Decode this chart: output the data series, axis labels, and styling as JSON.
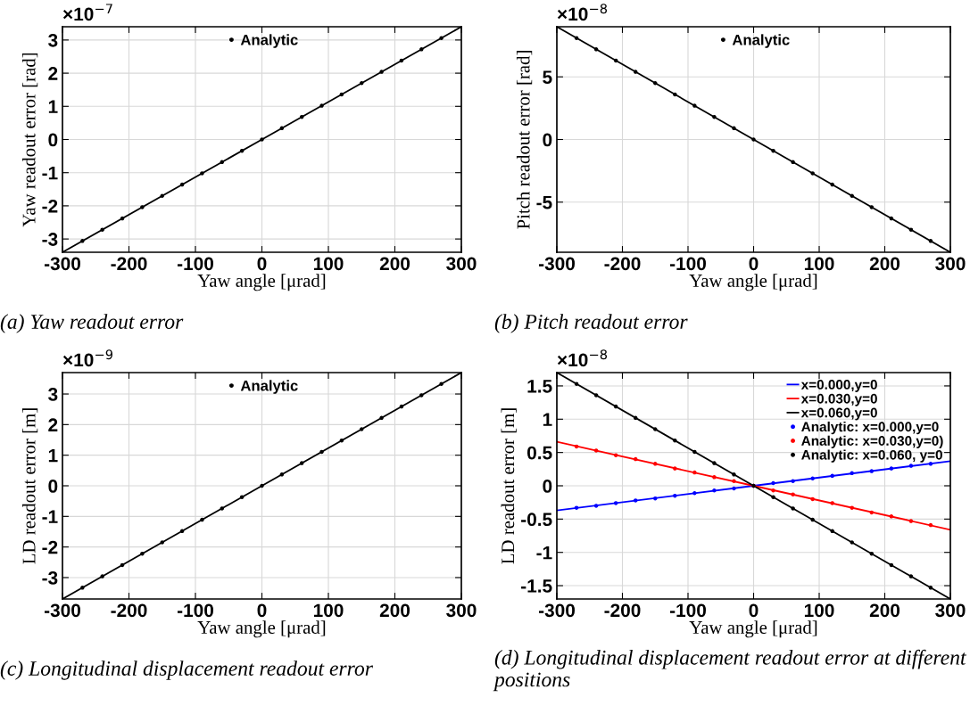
{
  "chart_data": [
    {
      "type": "line",
      "xlabel": "Yaw angle [μrad]",
      "ylabel": "Yaw readout error [rad]",
      "xlim": [
        -300,
        300
      ],
      "xticks": [
        -300,
        -200,
        -100,
        0,
        100,
        200,
        300
      ],
      "ylim": [
        -3.4,
        3.4
      ],
      "yticks": [
        -3,
        -2,
        -1,
        0,
        1,
        2,
        3
      ],
      "grid": true,
      "legend": "top",
      "annotations": [
        "×10$^{−7}$",
        "(a) Yaw readout error"
      ],
      "series": [
        {
          "type": "line",
          "color": "#000000",
          "x": [
            -300,
            0,
            300
          ],
          "values": [
            -3.4,
            0,
            3.4
          ]
        },
        {
          "type": "scatter",
          "name": "Analytic",
          "color": "#000000",
          "marker": "circle",
          "x": [
            -270,
            -240,
            -210,
            -180,
            -150,
            -120,
            -90,
            -60,
            -30,
            0,
            30,
            60,
            90,
            120,
            150,
            180,
            210,
            240,
            270
          ],
          "values": [
            -3.06,
            -2.72,
            -2.38,
            -2.04,
            -1.7,
            -1.36,
            -1.02,
            -0.68,
            -0.34,
            0,
            0.34,
            0.68,
            1.02,
            1.36,
            1.7,
            2.04,
            2.38,
            2.72,
            3.06
          ]
        }
      ]
    },
    {
      "type": "line",
      "xlabel": "Yaw angle [μrad]",
      "ylabel": "Pitch readout error [rad]",
      "xlim": [
        -300,
        300
      ],
      "xticks": [
        -300,
        -200,
        -100,
        0,
        100,
        200,
        300
      ],
      "ylim": [
        -9.0,
        9.0
      ],
      "yticks": [
        -5,
        0,
        5
      ],
      "grid": true,
      "legend": "top",
      "annotations": [
        "×10$^{−8}$",
        "(b) Pitch readout error"
      ],
      "series": [
        {
          "type": "line",
          "color": "#000000",
          "x": [
            -300,
            0,
            300
          ],
          "values": [
            9.0,
            0,
            -9.0
          ]
        },
        {
          "type": "scatter",
          "name": "Analytic",
          "color": "#000000",
          "marker": "circle",
          "x": [
            -270,
            -240,
            -210,
            -180,
            -150,
            -120,
            -90,
            -60,
            -30,
            0,
            30,
            60,
            90,
            120,
            150,
            180,
            210,
            240,
            270
          ],
          "values": [
            8.1,
            7.2,
            6.3,
            5.4,
            4.5,
            3.6,
            2.7,
            1.8,
            0.9,
            0,
            -0.9,
            -1.8,
            -2.7,
            -3.6,
            -4.5,
            -5.4,
            -6.3,
            -7.2,
            -8.1
          ]
        }
      ]
    },
    {
      "type": "line",
      "xlabel": "Yaw angle [μrad]",
      "ylabel": "LD readout error [m]",
      "xlim": [
        -300,
        300
      ],
      "xticks": [
        -300,
        -200,
        -100,
        0,
        100,
        200,
        300
      ],
      "ylim": [
        -3.7,
        3.7
      ],
      "yticks": [
        -3,
        -2,
        -1,
        0,
        1,
        2,
        3
      ],
      "grid": true,
      "legend": "top",
      "annotations": [
        "×10$^{−9}$",
        "(c) Longitudinal displacement readout error"
      ],
      "series": [
        {
          "type": "line",
          "color": "#000000",
          "x": [
            -300,
            0,
            300
          ],
          "values": [
            -3.7,
            0,
            3.7
          ]
        },
        {
          "type": "scatter",
          "name": "Analytic",
          "color": "#000000",
          "marker": "circle",
          "x": [
            -270,
            -240,
            -210,
            -180,
            -150,
            -120,
            -90,
            -60,
            -30,
            0,
            30,
            60,
            90,
            120,
            150,
            180,
            210,
            240,
            270
          ],
          "values": [
            -3.33,
            -2.96,
            -2.59,
            -2.22,
            -1.85,
            -1.48,
            -1.11,
            -0.74,
            -0.37,
            0,
            0.37,
            0.74,
            1.11,
            1.48,
            1.85,
            2.22,
            2.59,
            2.96,
            3.33
          ]
        }
      ]
    },
    {
      "type": "line",
      "xlabel": "Yaw angle [μrad]",
      "ylabel": "LD readout error [m]",
      "xlim": [
        -300,
        300
      ],
      "xticks": [
        -300,
        -200,
        -100,
        0,
        100,
        200,
        300
      ],
      "ylim": [
        -1.7,
        1.7
      ],
      "yticks": [
        -1.5,
        -1,
        -0.5,
        0,
        0.5,
        1,
        1.5
      ],
      "grid": true,
      "legend": "top right",
      "annotations": [
        "×10$^{−8}$",
        "(d) Longitudinal displacement readout error at different positions"
      ],
      "series": [
        {
          "type": "line",
          "name": "x=0.000,y=0",
          "color": "#0000ff",
          "x": [
            -300,
            0,
            300
          ],
          "values": [
            -0.37,
            0,
            0.37
          ]
        },
        {
          "type": "line",
          "name": "x=0.030,y=0",
          "color": "#ff0000",
          "x": [
            -300,
            0,
            300
          ],
          "values": [
            0.66,
            0,
            -0.66
          ]
        },
        {
          "type": "line",
          "name": "x=0.060,y=0",
          "color": "#000000",
          "x": [
            -300,
            0,
            300
          ],
          "values": [
            1.7,
            0,
            -1.7
          ]
        },
        {
          "type": "scatter",
          "name": "Analytic: x=0.000,y=0",
          "color": "#0000ff",
          "marker": "circle",
          "x": [
            -270,
            -240,
            -210,
            -180,
            -150,
            -120,
            -90,
            -60,
            -30,
            0,
            30,
            60,
            90,
            120,
            150,
            180,
            210,
            240,
            270
          ],
          "values": [
            -0.33,
            -0.3,
            -0.26,
            -0.22,
            -0.19,
            -0.15,
            -0.11,
            -0.07,
            -0.04,
            0,
            0.04,
            0.07,
            0.11,
            0.15,
            0.19,
            0.22,
            0.26,
            0.3,
            0.33
          ]
        },
        {
          "type": "scatter",
          "name": "Analytic: x=0.030,y=0)",
          "color": "#ff0000",
          "marker": "circle",
          "x": [
            -270,
            -240,
            -210,
            -180,
            -150,
            -120,
            -90,
            -60,
            -30,
            0,
            30,
            60,
            90,
            120,
            150,
            180,
            210,
            240,
            270
          ],
          "values": [
            0.59,
            0.53,
            0.46,
            0.4,
            0.33,
            0.26,
            0.2,
            0.13,
            0.07,
            0,
            -0.07,
            -0.13,
            -0.2,
            -0.26,
            -0.33,
            -0.4,
            -0.46,
            -0.53,
            -0.59
          ]
        },
        {
          "type": "scatter",
          "name": "Analytic: x=0.060, y=0",
          "color": "#000000",
          "marker": "circle",
          "x": [
            -270,
            -240,
            -210,
            -180,
            -150,
            -120,
            -90,
            -60,
            -30,
            0,
            30,
            60,
            90,
            120,
            150,
            180,
            210,
            240,
            270
          ],
          "values": [
            1.53,
            1.36,
            1.19,
            1.02,
            0.85,
            0.68,
            0.51,
            0.34,
            0.17,
            0,
            -0.17,
            -0.34,
            -0.51,
            -0.68,
            -0.85,
            -1.02,
            -1.19,
            -1.36,
            -1.53
          ]
        }
      ]
    }
  ]
}
